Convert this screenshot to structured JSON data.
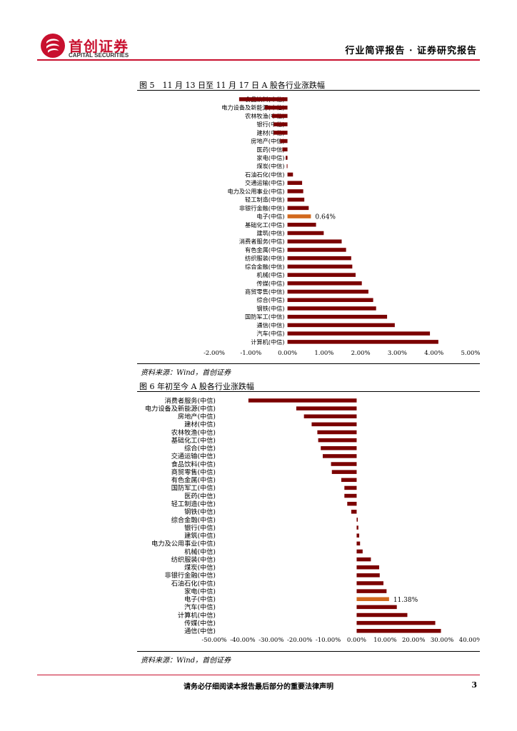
{
  "header": {
    "logo_cn": "首创证券",
    "logo_en": "CAPITAL SECURITIES",
    "report_type": "行业简评报告 · 证券研究报告",
    "brand_color": "#c8102e"
  },
  "figures": [
    {
      "title": "图 5　11 月 13 日至 11 月 17 日 A 股各行业涨跌幅",
      "source": "资料来源：Wind，首创证券"
    },
    {
      "title": "图 6  年初至今 A 股各行业涨跌幅",
      "source": "资料来源：Wind，首创证券"
    }
  ],
  "footer": {
    "note": "请务必仔细阅读本报告最后部分的重要法律声明",
    "page": "3"
  },
  "chart_data": [
    {
      "type": "bar",
      "orientation": "horizontal",
      "title": "图 5　11 月 13 日至 11 月 17 日 A 股各行业涨跌幅",
      "categories": [
        "食品饮料(中信)",
        "电力设备及新能源(中信)",
        "农林牧渔(中信)",
        "银行(中信)",
        "建材(中信)",
        "房地产(中信)",
        "医药(中信)",
        "家电(中信)",
        "煤炭(中信)",
        "石油石化(中信)",
        "交通运输(中信)",
        "电力及公用事业(中信)",
        "轻工制造(中信)",
        "非银行金融(中信)",
        "电子(中信)",
        "基础化工(中信)",
        "建筑(中信)",
        "消费者服务(中信)",
        "有色金属(中信)",
        "纺织服装(中信)",
        "综合金融(中信)",
        "机械(中信)",
        "传媒(中信)",
        "商贸零售(中信)",
        "综合(中信)",
        "钢铁(中信)",
        "国防军工(中信)",
        "通信(中信)",
        "汽车(中信)",
        "计算机(中信)"
      ],
      "values": [
        -1.32,
        -0.62,
        -0.42,
        -0.38,
        -0.38,
        -0.2,
        -0.14,
        -0.05,
        -0.02,
        0.15,
        0.4,
        0.43,
        0.46,
        0.58,
        0.64,
        0.78,
        0.99,
        1.48,
        1.6,
        1.74,
        1.77,
        1.86,
        2.03,
        2.21,
        2.34,
        2.42,
        2.72,
        2.93,
        3.89,
        4.12
      ],
      "highlight": {
        "category": "电子(中信)",
        "label": "0.64%"
      },
      "bar_color": "#7b0000",
      "highlight_color": "#d2691e",
      "xlim": [
        -2,
        5
      ],
      "xticks": [
        "-2.00%",
        "-1.00%",
        "0.00%",
        "1.00%",
        "2.00%",
        "3.00%",
        "4.00%",
        "5.00%"
      ]
    },
    {
      "type": "bar",
      "orientation": "horizontal",
      "title": "图 6  年初至今 A 股各行业涨跌幅",
      "categories": [
        "消费者服务(中信)",
        "电力设备及新能源(中信)",
        "房地产(中信)",
        "建材(中信)",
        "农林牧渔(中信)",
        "基础化工(中信)",
        "综合(中信)",
        "交通运输(中信)",
        "食品饮料(中信)",
        "商贸零售(中信)",
        "有色金属(中信)",
        "国防军工(中信)",
        "医药(中信)",
        "轻工制造(中信)",
        "钢铁(中信)",
        "综合金融(中信)",
        "银行(中信)",
        "建筑(中信)",
        "电力及公用事业(中信)",
        "机械(中信)",
        "纺织服装(中信)",
        "煤炭(中信)",
        "非银行金融(中信)",
        "石油石化(中信)",
        "家电(中信)",
        "电子(中信)",
        "汽车(中信)",
        "计算机(中信)",
        "传媒(中信)",
        "通信(中信)"
      ],
      "values": [
        -38.0,
        -21.2,
        -18.5,
        -15.8,
        -13.8,
        -13.5,
        -12.6,
        -11.9,
        -9.0,
        -8.7,
        -5.4,
        -4.3,
        -4.3,
        -3.3,
        -1.9,
        0.4,
        0.6,
        0.9,
        1.2,
        2.1,
        5.0,
        7.9,
        8.1,
        9.4,
        10.5,
        11.38,
        14.1,
        17.8,
        27.6,
        29.6
      ],
      "highlight": {
        "category": "电子(中信)",
        "label": "11.38%"
      },
      "bar_color": "#7b0000",
      "highlight_color": "#d2691e",
      "xlim": [
        -50,
        40
      ],
      "xticks": [
        "-50.00%",
        "-40.00%",
        "-30.00%",
        "-20.00%",
        "-10.00%",
        "0.00%",
        "10.00%",
        "20.00%",
        "30.00%",
        "40.00%"
      ]
    }
  ]
}
